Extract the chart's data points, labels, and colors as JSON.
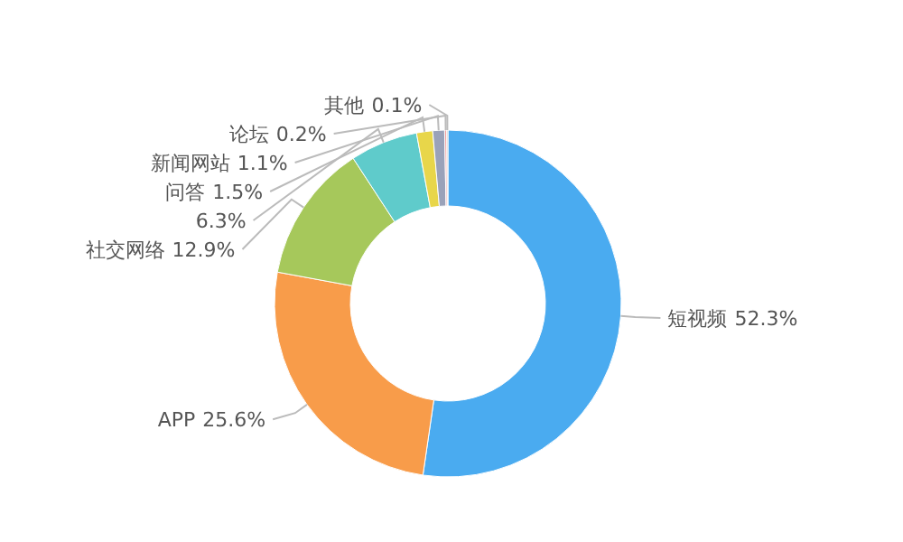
{
  "chart_data": {
    "type": "donut",
    "categories": [
      "短视频",
      "APP",
      "社交网络",
      null,
      "问答",
      "新闻网站",
      "论坛",
      "其他"
    ],
    "values": [
      52.3,
      25.6,
      12.9,
      6.3,
      1.5,
      1.1,
      0.2,
      0.1
    ],
    "value_labels": [
      "52.3%",
      "25.6%",
      "12.9%",
      "6.3%",
      "1.5%",
      "1.1%",
      "0.2%",
      "0.1%"
    ],
    "colors": [
      "#4aabf0",
      "#f89c4a",
      "#a6c85b",
      "#5fcbcb",
      "#e8d64a",
      "#9aa2b9",
      "#f0a0a0",
      "#b0b0b0"
    ]
  }
}
